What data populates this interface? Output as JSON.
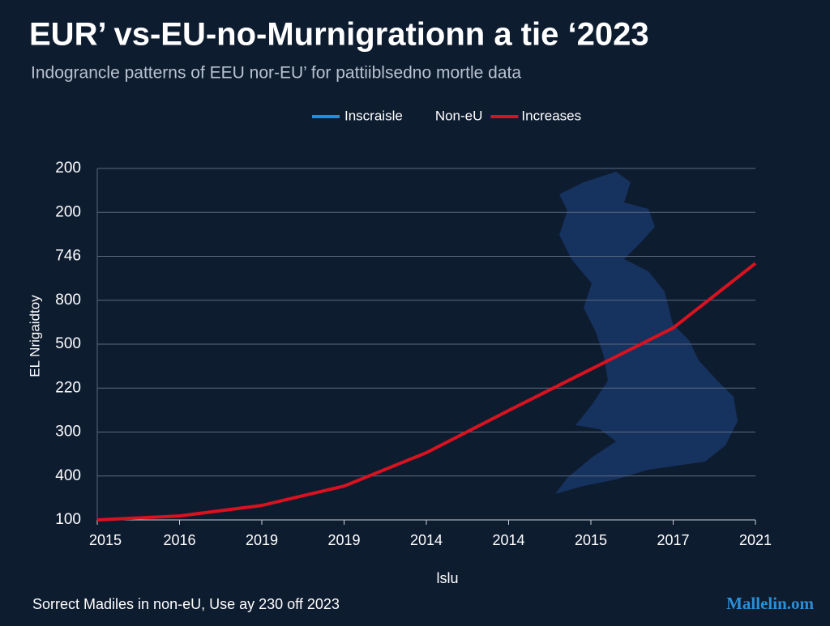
{
  "chart_data": {
    "type": "line",
    "title": "EUR’ vs-EU-no-Murnigrationn a tie ‘2023",
    "subtitle": "Indograncle patterns of EEU nor-EU’ for pattiiblsedno mortle data",
    "y_label": "EL Nrigaidtoy",
    "x_label": "lslu",
    "footer": "Sorrect Madiles in non-eU, Use ay 230 off 2023",
    "watermark": "Mallelin.om",
    "legend_items": [
      {
        "label": "Inscraisle",
        "color": "#1e8fe8"
      },
      {
        "label": "Non-eU"
      }
    ],
    "categories": [
      "2015",
      "2016",
      "2019",
      "2019",
      "2014",
      "2014",
      "2015",
      "2017",
      "2021"
    ],
    "series": [
      {
        "name": "Increases",
        "color": "#d9121f",
        "values": [
          0,
          0.09,
          0.33,
          0.77,
          1.53,
          2.49,
          3.43,
          4.37,
          5.84
        ]
      }
    ],
    "ylim": [
      0,
      8
    ],
    "yticks": [
      {
        "value": 0,
        "label": "100"
      },
      {
        "value": 1,
        "label": "400"
      },
      {
        "value": 2,
        "label": "300"
      },
      {
        "value": 3,
        "label": "220"
      },
      {
        "value": 4,
        "label": "500"
      },
      {
        "value": 5,
        "label": "800"
      },
      {
        "value": 6,
        "label": "746"
      },
      {
        "value": 7,
        "label": "200"
      },
      {
        "value": 8,
        "label": "200"
      }
    ],
    "grid": true
  }
}
